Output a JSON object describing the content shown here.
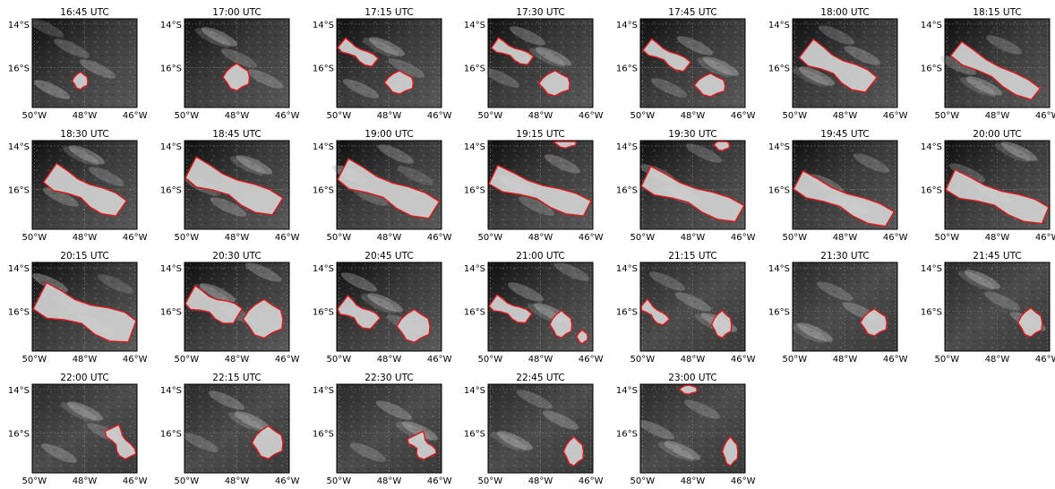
{
  "figure": {
    "panels": [
      {
        "time": "16:45 UTC"
      },
      {
        "time": "17:00 UTC"
      },
      {
        "time": "17:15 UTC"
      },
      {
        "time": "17:30 UTC"
      },
      {
        "time": "17:45 UTC"
      },
      {
        "time": "18:00 UTC"
      },
      {
        "time": "18:15 UTC"
      },
      {
        "time": "18:30 UTC"
      },
      {
        "time": "18:45 UTC"
      },
      {
        "time": "19:00 UTC"
      },
      {
        "time": "19:15 UTC"
      },
      {
        "time": "19:30 UTC"
      },
      {
        "time": "19:45 UTC"
      },
      {
        "time": "20:00 UTC"
      },
      {
        "time": "20:15 UTC"
      },
      {
        "time": "20:30 UTC"
      },
      {
        "time": "20:45 UTC"
      },
      {
        "time": "21:00 UTC"
      },
      {
        "time": "21:15 UTC"
      },
      {
        "time": "21:30 UTC"
      },
      {
        "time": "21:45 UTC"
      },
      {
        "time": "22:00 UTC"
      },
      {
        "time": "22:15 UTC"
      },
      {
        "time": "22:30 UTC"
      },
      {
        "time": "22:45 UTC"
      },
      {
        "time": "23:00 UTC"
      }
    ],
    "lat_ticks": [
      "14°S",
      "16°S"
    ],
    "lon_ticks": [
      "50°W",
      "48°W",
      "46°W"
    ],
    "colors": {
      "outline": "#e0191c",
      "contour": "#000000",
      "background_dark": "#1a1a1a",
      "cloud_light": "#d2d2d2"
    }
  }
}
